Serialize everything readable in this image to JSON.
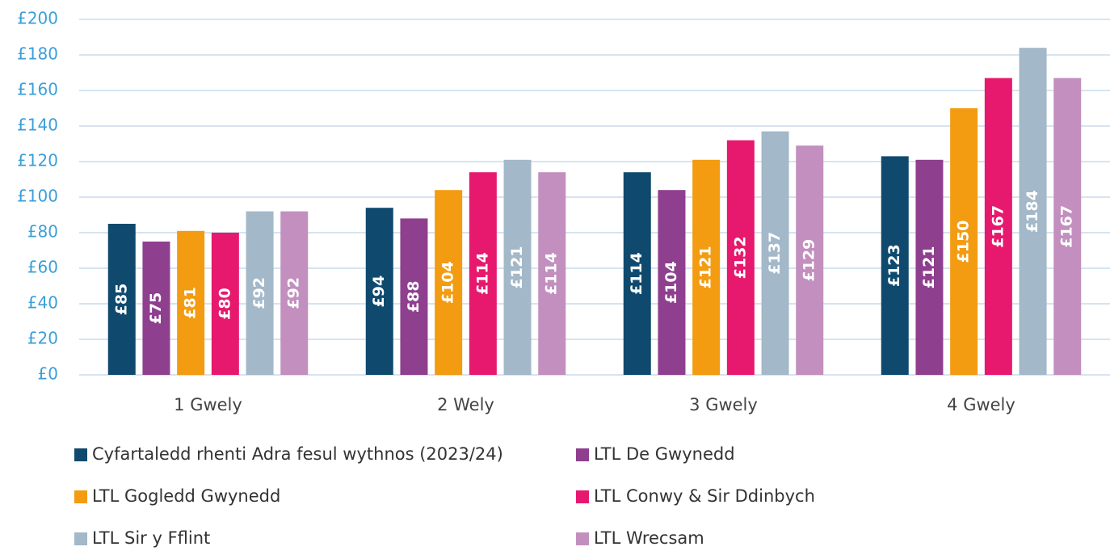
{
  "chart_data": {
    "type": "bar",
    "categories": [
      "1 Gwely",
      "2 Wely",
      "3 Gwely",
      "4 Gwely"
    ],
    "series": [
      {
        "name": "Cyfartaledd rhenti Adra fesul wythnos (2023/24)",
        "color": "#0f4a6e",
        "values": [
          85,
          94,
          114,
          123
        ],
        "value_labels": [
          "£85",
          "£94",
          "£114",
          "£123"
        ]
      },
      {
        "name": "LTL De Gwynedd",
        "color": "#8e3f8e",
        "values": [
          75,
          88,
          104,
          121
        ],
        "value_labels": [
          "£75",
          "£88",
          "£104",
          "£121"
        ]
      },
      {
        "name": "LTL Gogledd Gwynedd",
        "color": "#f39c12",
        "values": [
          81,
          104,
          121,
          150
        ],
        "value_labels": [
          "£81",
          "£104",
          "£121",
          "£150"
        ]
      },
      {
        "name": "LTL Conwy & Sir Ddinbych",
        "color": "#e6196e",
        "values": [
          80,
          114,
          132,
          167
        ],
        "value_labels": [
          "£80",
          "£114",
          "£132",
          "£167"
        ]
      },
      {
        "name": "LTL Sir y Fflint",
        "color": "#a3b8c8",
        "values": [
          92,
          121,
          137,
          184
        ],
        "value_labels": [
          "£92",
          "£121",
          "£137",
          "£184"
        ]
      },
      {
        "name": "LTL Wrecsam",
        "color": "#c28fbf",
        "values": [
          92,
          114,
          129,
          167
        ],
        "value_labels": [
          "£92",
          "£114",
          "£129",
          "£167"
        ]
      }
    ],
    "ylim": [
      0,
      200
    ],
    "yticks": [
      {
        "value": 0,
        "label": "£0"
      },
      {
        "value": 20,
        "label": "£20"
      },
      {
        "value": 40,
        "label": "£40"
      },
      {
        "value": 60,
        "label": "£60"
      },
      {
        "value": 80,
        "label": "£80"
      },
      {
        "value": 100,
        "label": "£100"
      },
      {
        "value": 120,
        "label": "£120"
      },
      {
        "value": 140,
        "label": "£140"
      },
      {
        "value": 160,
        "label": "£160"
      },
      {
        "value": 180,
        "label": "£180"
      },
      {
        "value": 200,
        "label": "£200"
      }
    ],
    "grid": true,
    "legend": "bottom"
  }
}
